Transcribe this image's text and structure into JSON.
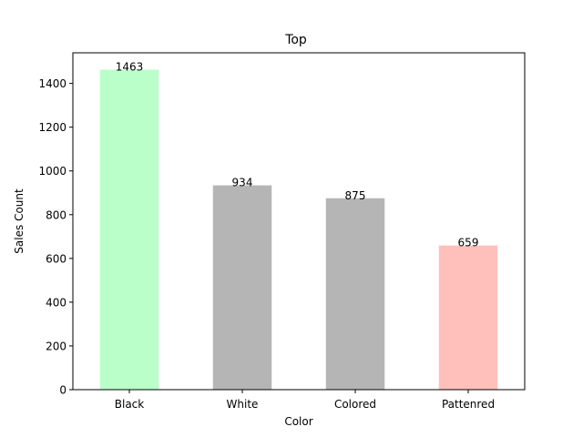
{
  "chart_data": {
    "type": "bar",
    "title": "Top",
    "xlabel": "Color",
    "ylabel": "Sales Count",
    "categories": [
      "Black",
      "White",
      "Colored",
      "Pattenred"
    ],
    "values": [
      1463,
      934,
      875,
      659
    ],
    "bar_colors": [
      "#baffc9",
      "#b6b5b5",
      "#b6b5b5",
      "#ffc0bb"
    ],
    "ylim": [
      0,
      1540
    ],
    "yticks": [
      0,
      200,
      400,
      600,
      800,
      1000,
      1200,
      1400
    ],
    "grid": false
  }
}
